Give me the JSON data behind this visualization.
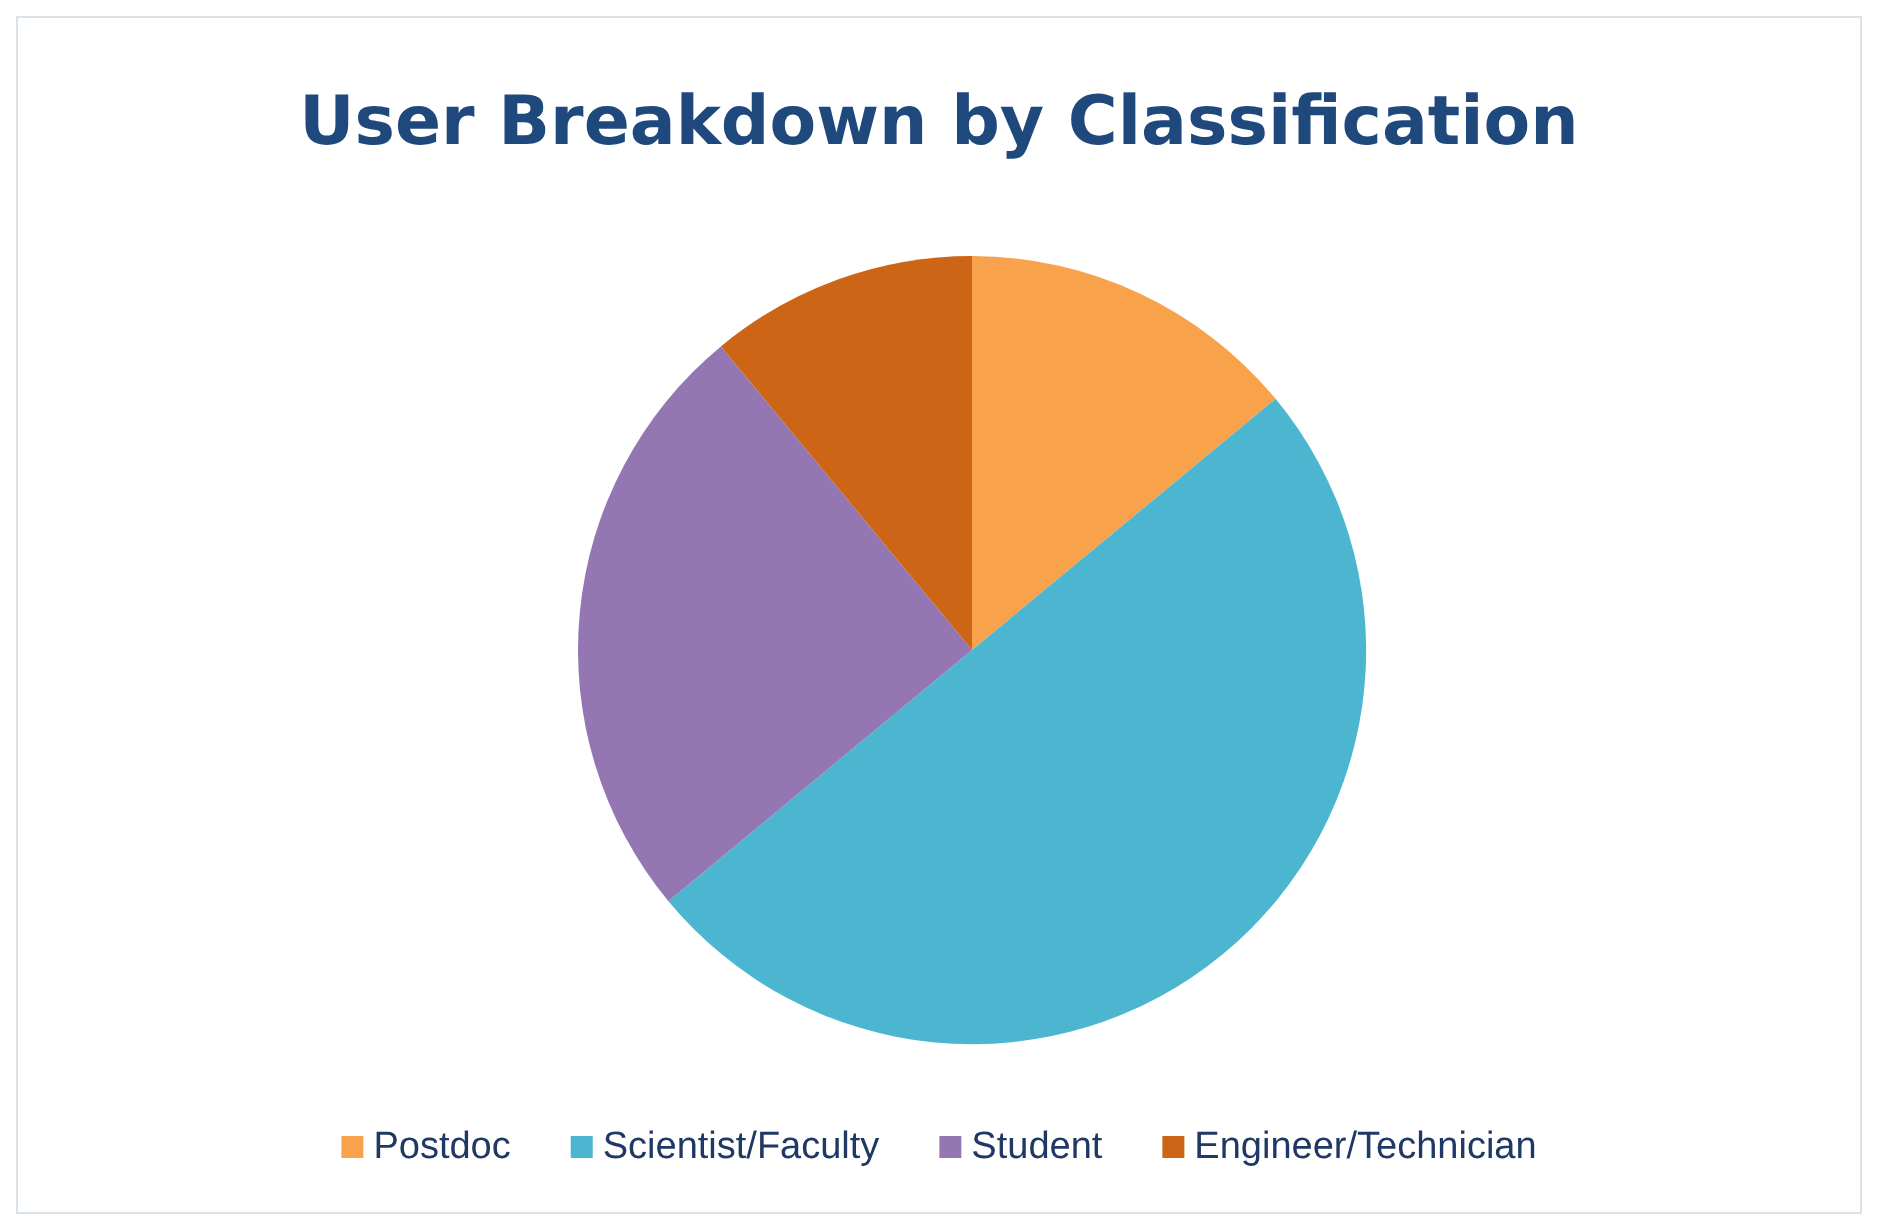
{
  "chart_data": {
    "type": "pie",
    "title": "User Breakdown by Classification",
    "categories": [
      "Postdoc",
      "Scientist/Faculty",
      "Student",
      "Engineer/Technician"
    ],
    "values": [
      14,
      50,
      25,
      11
    ],
    "colors": [
      "#f9a24c",
      "#4cb6d0",
      "#9476b2",
      "#cc6616"
    ],
    "legend": "bottom"
  }
}
